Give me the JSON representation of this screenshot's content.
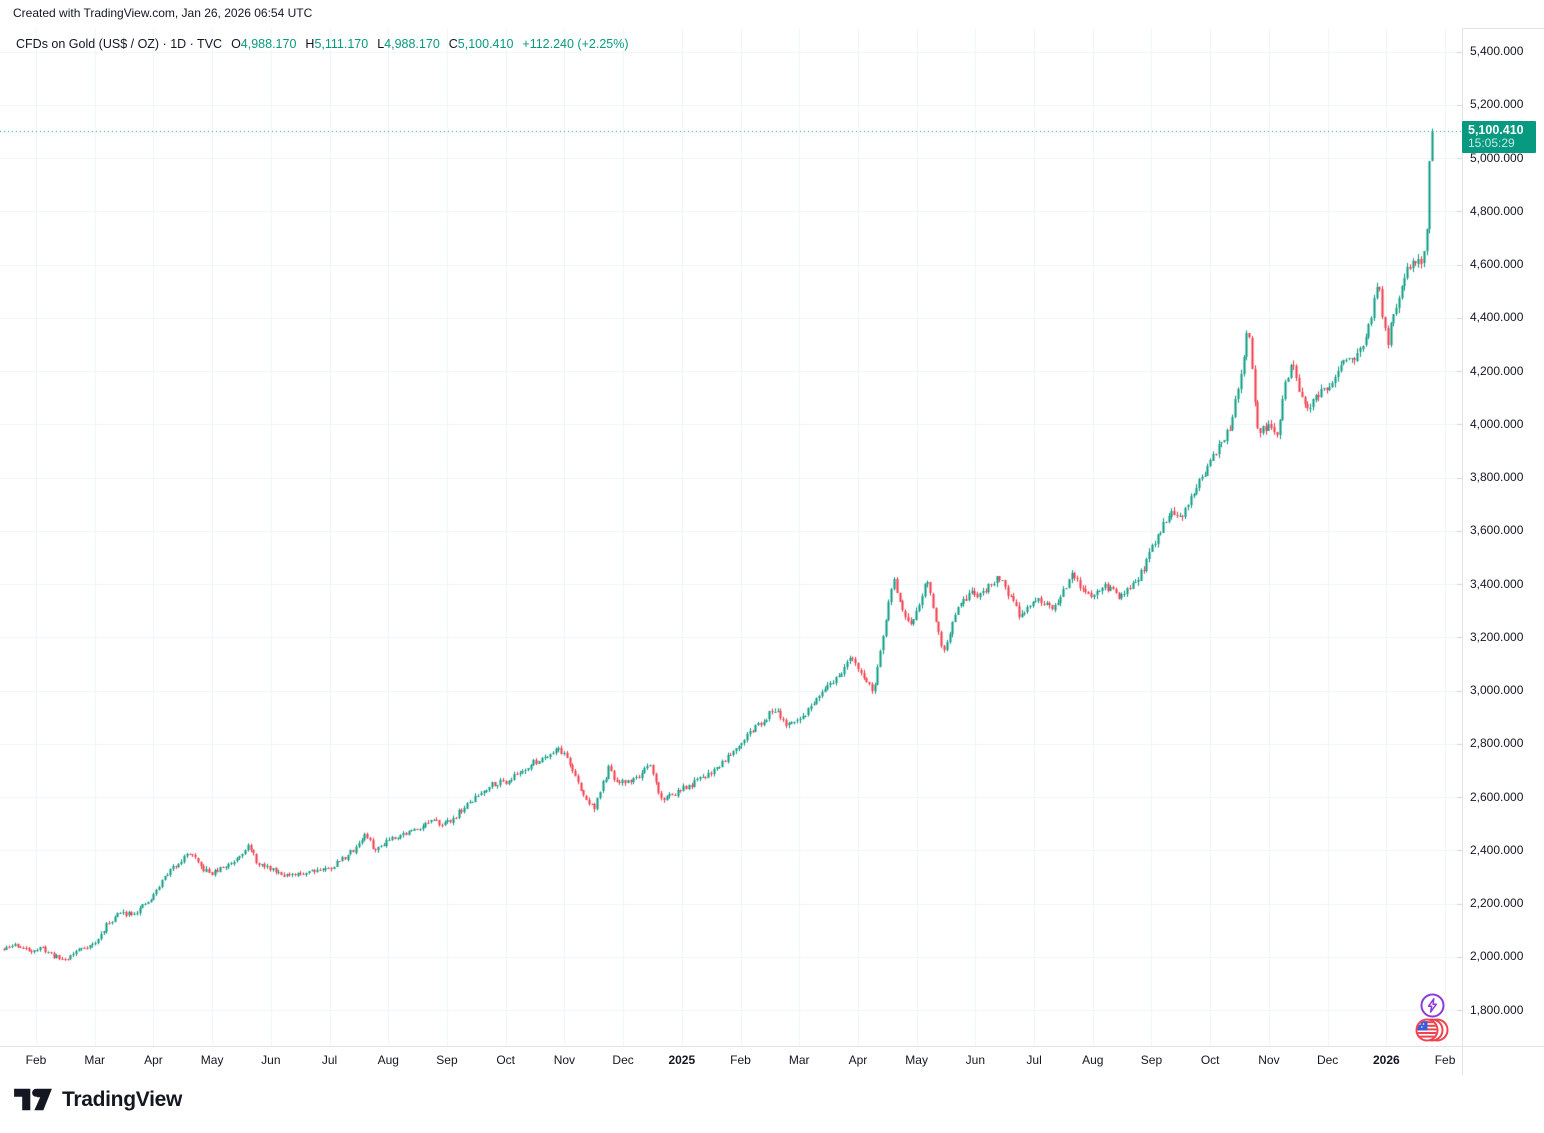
{
  "attribution": "Created with TradingView.com, Jan 26, 2026 06:54 UTC",
  "legend": {
    "title": "CFDs on Gold (US$ / OZ) · 1D · TVC",
    "o_label": "O",
    "o_value": "4,988.170",
    "h_label": "H",
    "h_value": "5,111.170",
    "l_label": "L",
    "l_value": "4,988.170",
    "c_label": "C",
    "c_value": "5,100.410",
    "change": "+112.240 (+2.25%)"
  },
  "price_badge": {
    "value": "5,100.410",
    "countdown": "15:05:29"
  },
  "price_axis": {
    "labels": [
      {
        "text": "5,400.000",
        "value": 5400
      },
      {
        "text": "5,200.000",
        "value": 5200
      },
      {
        "text": "5,000.000",
        "value": 5000
      },
      {
        "text": "4,800.000",
        "value": 4800
      },
      {
        "text": "4,600.000",
        "value": 4600
      },
      {
        "text": "4,400.000",
        "value": 4400
      },
      {
        "text": "4,200.000",
        "value": 4200
      },
      {
        "text": "4,000.000",
        "value": 4000
      },
      {
        "text": "3,800.000",
        "value": 3800
      },
      {
        "text": "3,600.000",
        "value": 3600
      },
      {
        "text": "3,400.000",
        "value": 3400
      },
      {
        "text": "3,200.000",
        "value": 3200
      },
      {
        "text": "3,000.000",
        "value": 3000
      },
      {
        "text": "2,800.000",
        "value": 2800
      },
      {
        "text": "2,600.000",
        "value": 2600
      },
      {
        "text": "2,400.000",
        "value": 2400
      },
      {
        "text": "2,200.000",
        "value": 2200
      },
      {
        "text": "2,000.000",
        "value": 2000
      },
      {
        "text": "1,800.000",
        "value": 1800
      }
    ]
  },
  "time_axis": {
    "labels": [
      {
        "label": "Feb",
        "bold": false
      },
      {
        "label": "Mar",
        "bold": false
      },
      {
        "label": "Apr",
        "bold": false
      },
      {
        "label": "May",
        "bold": false
      },
      {
        "label": "Jun",
        "bold": false
      },
      {
        "label": "Jul",
        "bold": false
      },
      {
        "label": "Aug",
        "bold": false
      },
      {
        "label": "Sep",
        "bold": false
      },
      {
        "label": "Oct",
        "bold": false
      },
      {
        "label": "Nov",
        "bold": false
      },
      {
        "label": "Dec",
        "bold": false
      },
      {
        "label": "2025",
        "bold": true
      },
      {
        "label": "Feb",
        "bold": false
      },
      {
        "label": "Mar",
        "bold": false
      },
      {
        "label": "Apr",
        "bold": false
      },
      {
        "label": "May",
        "bold": false
      },
      {
        "label": "Jun",
        "bold": false
      },
      {
        "label": "Jul",
        "bold": false
      },
      {
        "label": "Aug",
        "bold": false
      },
      {
        "label": "Sep",
        "bold": false
      },
      {
        "label": "Oct",
        "bold": false
      },
      {
        "label": "Nov",
        "bold": false
      },
      {
        "label": "Dec",
        "bold": false
      },
      {
        "label": "2026",
        "bold": true
      },
      {
        "label": "Feb",
        "bold": false
      }
    ]
  },
  "logo": {
    "text": "TradingView"
  },
  "colors": {
    "up": "#089981",
    "down": "#F23645",
    "grid": "#F0F3FA",
    "border": "#E0E3EB",
    "text": "#131722",
    "axis_tick": "#D1D4DC",
    "badge_bg": "#089981",
    "marker_purple": "#8C3BD9",
    "marker_red": "#F0424E"
  },
  "chart_data": {
    "type": "candlestick",
    "title": "CFDs on Gold (US$ / OZ)",
    "interval": "1D",
    "exchange": "TVC",
    "last_bar": {
      "open": 4988.17,
      "high": 5111.17,
      "low": 4988.17,
      "close": 5100.41,
      "change": 112.24,
      "change_pct": 2.25
    },
    "last_price": 5100.41,
    "price_range": [
      1800,
      5400
    ],
    "price_step": 200,
    "anchors_unit": "months_from_Feb2024_tick",
    "anchors": [
      [
        -0.55,
        2028
      ],
      [
        -0.35,
        2046
      ],
      [
        -0.15,
        2024
      ],
      [
        0.1,
        2032
      ],
      [
        0.35,
        1999
      ],
      [
        0.5,
        1991
      ],
      [
        0.75,
        2033
      ],
      [
        1.0,
        2048
      ],
      [
        1.2,
        2120
      ],
      [
        1.4,
        2163
      ],
      [
        1.7,
        2168
      ],
      [
        1.95,
        2215
      ],
      [
        2.2,
        2305
      ],
      [
        2.45,
        2362
      ],
      [
        2.62,
        2392
      ],
      [
        2.8,
        2335
      ],
      [
        3.0,
        2312
      ],
      [
        3.35,
        2358
      ],
      [
        3.6,
        2418
      ],
      [
        3.8,
        2342
      ],
      [
        4.0,
        2332
      ],
      [
        4.35,
        2300
      ],
      [
        4.7,
        2328
      ],
      [
        5.0,
        2333
      ],
      [
        5.4,
        2400
      ],
      [
        5.6,
        2462
      ],
      [
        5.78,
        2398
      ],
      [
        6.0,
        2446
      ],
      [
        6.35,
        2468
      ],
      [
        6.7,
        2508
      ],
      [
        7.0,
        2502
      ],
      [
        7.35,
        2572
      ],
      [
        7.75,
        2652
      ],
      [
        8.0,
        2658
      ],
      [
        8.4,
        2718
      ],
      [
        8.9,
        2786
      ],
      [
        9.05,
        2744
      ],
      [
        9.3,
        2612
      ],
      [
        9.5,
        2556
      ],
      [
        9.75,
        2708
      ],
      [
        9.9,
        2648
      ],
      [
        10.2,
        2668
      ],
      [
        10.45,
        2716
      ],
      [
        10.65,
        2592
      ],
      [
        10.9,
        2618
      ],
      [
        11.2,
        2652
      ],
      [
        11.6,
        2712
      ],
      [
        11.95,
        2798
      ],
      [
        12.3,
        2872
      ],
      [
        12.6,
        2936
      ],
      [
        12.8,
        2862
      ],
      [
        13.0,
        2892
      ],
      [
        13.4,
        2988
      ],
      [
        13.9,
        3122
      ],
      [
        14.1,
        3052
      ],
      [
        14.25,
        2986
      ],
      [
        14.6,
        3422
      ],
      [
        14.75,
        3302
      ],
      [
        14.88,
        3236
      ],
      [
        15.05,
        3332
      ],
      [
        15.15,
        3428
      ],
      [
        15.45,
        3152
      ],
      [
        15.7,
        3302
      ],
      [
        15.9,
        3366
      ],
      [
        16.1,
        3356
      ],
      [
        16.4,
        3432
      ],
      [
        16.75,
        3282
      ],
      [
        17.0,
        3342
      ],
      [
        17.3,
        3305
      ],
      [
        17.65,
        3432
      ],
      [
        17.9,
        3352
      ],
      [
        18.2,
        3392
      ],
      [
        18.5,
        3348
      ],
      [
        18.85,
        3450
      ],
      [
        19.0,
        3540
      ],
      [
        19.15,
        3605
      ],
      [
        19.32,
        3680
      ],
      [
        19.5,
        3642
      ],
      [
        19.66,
        3727
      ],
      [
        19.9,
        3816
      ],
      [
        20.08,
        3890
      ],
      [
        20.2,
        3930
      ],
      [
        20.32,
        3985
      ],
      [
        20.45,
        4100
      ],
      [
        20.58,
        4280
      ],
      [
        20.65,
        4370
      ],
      [
        20.73,
        4150
      ],
      [
        20.82,
        3955
      ],
      [
        20.92,
        3990
      ],
      [
        21.0,
        3995
      ],
      [
        21.12,
        3945
      ],
      [
        21.3,
        4180
      ],
      [
        21.42,
        4230
      ],
      [
        21.55,
        4090
      ],
      [
        21.68,
        4048
      ],
      [
        21.87,
        4130
      ],
      [
        22.05,
        4150
      ],
      [
        22.25,
        4220
      ],
      [
        22.45,
        4250
      ],
      [
        22.6,
        4280
      ],
      [
        22.75,
        4420
      ],
      [
        22.86,
        4540
      ],
      [
        22.95,
        4380
      ],
      [
        23.02,
        4310
      ],
      [
        23.12,
        4420
      ],
      [
        23.22,
        4490
      ],
      [
        23.32,
        4560
      ],
      [
        23.42,
        4610
      ],
      [
        23.5,
        4600
      ],
      [
        23.56,
        4625
      ],
      [
        23.6,
        4590
      ],
      [
        23.64,
        4655
      ],
      [
        23.68,
        4730
      ],
      [
        23.71,
        4800
      ],
      [
        23.74,
        4905
      ],
      [
        23.76,
        4988
      ],
      [
        23.78,
        5100.41
      ]
    ]
  }
}
